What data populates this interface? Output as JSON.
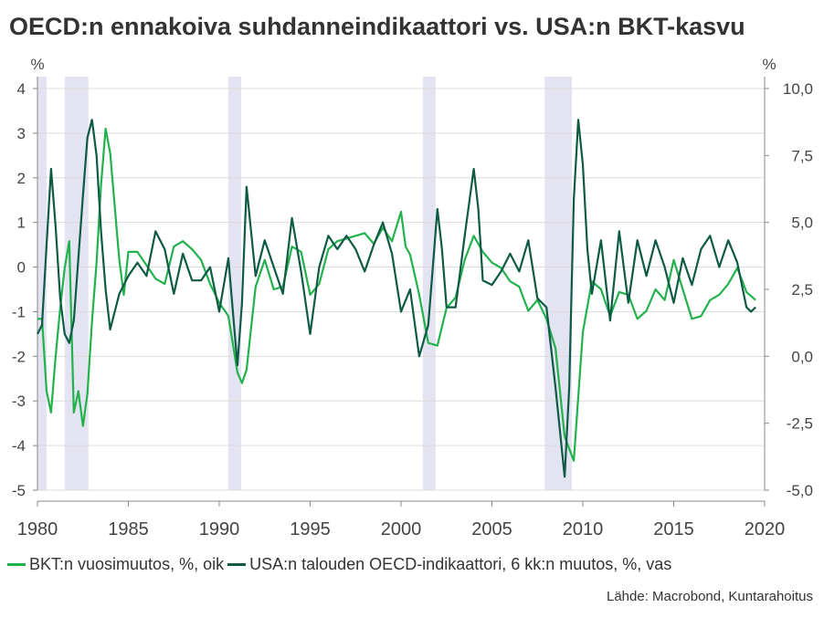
{
  "title": "OECD:n ennakoiva suhdanneindikaattori vs. USA:n BKT-kasvu",
  "source": "Lähde: Macrobond, Kuntarahoitus",
  "colors": {
    "gdp": "#22b24c",
    "oecd": "#0e5a45",
    "recession": "#e3e3f1",
    "grid": "#dcdcdc"
  },
  "chart_data": {
    "type": "line",
    "ylabel_left": "%",
    "ylabel_right": "%",
    "xlim": [
      1980,
      2020
    ],
    "x_ticks": [
      1980,
      1985,
      1990,
      1995,
      2000,
      2005,
      2010,
      2015,
      2020
    ],
    "ylim_left": [
      -5,
      4
    ],
    "y_ticks_left": [
      "4",
      "3",
      "2",
      "1",
      "0",
      "-1",
      "-2",
      "-3",
      "-4",
      "-5"
    ],
    "ylim_right": [
      -5,
      10
    ],
    "y_ticks_right": [
      "10,0",
      "7,5",
      "5,0",
      "2,5",
      "0,0",
      "-2,5",
      "-5,0"
    ],
    "grid": true,
    "legend_position": "bottom",
    "recessions": [
      [
        1980.0,
        1980.5
      ],
      [
        1981.5,
        1982.8
      ],
      [
        1990.5,
        1991.2
      ],
      [
        2001.2,
        2001.9
      ],
      [
        2007.9,
        2009.4
      ]
    ],
    "series": [
      {
        "name": "BKT:n vuosimuutos, %, oik",
        "axis": "right",
        "x": [
          1980.0,
          1980.25,
          1980.5,
          1980.75,
          1981.0,
          1981.25,
          1981.5,
          1981.75,
          1982.0,
          1982.25,
          1982.5,
          1982.75,
          1983.0,
          1983.25,
          1983.5,
          1983.75,
          1984.0,
          1984.25,
          1984.5,
          1984.75,
          1985.0,
          1985.5,
          1986.0,
          1986.5,
          1987.0,
          1987.5,
          1988.0,
          1988.5,
          1989.0,
          1989.5,
          1990.0,
          1990.5,
          1991.0,
          1991.25,
          1991.5,
          1992.0,
          1992.5,
          1993.0,
          1993.5,
          1994.0,
          1994.5,
          1995.0,
          1995.5,
          1996.0,
          1996.5,
          1997.0,
          1997.5,
          1998.0,
          1998.5,
          1999.0,
          1999.5,
          2000.0,
          2000.25,
          2000.5,
          2001.0,
          2001.5,
          2002.0,
          2002.5,
          2003.0,
          2003.5,
          2004.0,
          2004.5,
          2005.0,
          2005.5,
          2006.0,
          2006.5,
          2007.0,
          2007.5,
          2008.0,
          2008.5,
          2009.0,
          2009.5,
          2010.0,
          2010.5,
          2011.0,
          2011.5,
          2012.0,
          2012.5,
          2013.0,
          2013.5,
          2014.0,
          2014.5,
          2015.0,
          2015.5,
          2016.0,
          2016.5,
          2017.0,
          2017.5,
          2018.0,
          2018.5,
          2019.0,
          2019.5
        ],
        "y": [
          1.4,
          1.4,
          -1.3,
          -2.1,
          0.0,
          1.8,
          3.3,
          4.3,
          -2.1,
          -1.3,
          -2.6,
          -1.4,
          1.3,
          3.5,
          6.4,
          8.5,
          7.6,
          5.6,
          3.6,
          2.3,
          3.9,
          3.9,
          3.4,
          2.9,
          2.7,
          4.1,
          4.3,
          4.0,
          3.6,
          2.7,
          2.0,
          1.5,
          -0.6,
          -1.0,
          -0.5,
          2.6,
          3.6,
          2.5,
          2.6,
          4.1,
          3.9,
          2.3,
          2.7,
          4.0,
          4.3,
          4.4,
          4.5,
          4.6,
          4.2,
          4.8,
          4.3,
          5.4,
          4.1,
          3.8,
          2.3,
          0.5,
          0.4,
          1.8,
          2.2,
          3.6,
          4.5,
          3.9,
          3.5,
          3.3,
          2.8,
          2.6,
          1.7,
          2.1,
          1.4,
          0.3,
          -3.0,
          -3.9,
          0.9,
          2.8,
          2.5,
          1.5,
          2.4,
          2.3,
          1.4,
          1.7,
          2.5,
          2.1,
          3.6,
          2.5,
          1.4,
          1.5,
          2.1,
          2.3,
          2.7,
          3.3,
          2.4,
          2.1
        ]
      },
      {
        "name": "USA:n talouden OECD-indikaattori, 6 kk:n muutos, %, vas",
        "axis": "left",
        "x": [
          1980.0,
          1980.25,
          1980.5,
          1980.75,
          1981.0,
          1981.25,
          1981.5,
          1981.75,
          1982.0,
          1982.25,
          1982.5,
          1982.75,
          1983.0,
          1983.25,
          1983.5,
          1983.75,
          1984.0,
          1984.5,
          1985.0,
          1985.5,
          1986.0,
          1986.5,
          1987.0,
          1987.5,
          1988.0,
          1988.5,
          1989.0,
          1989.5,
          1990.0,
          1990.5,
          1991.0,
          1991.25,
          1991.5,
          1992.0,
          1992.5,
          1993.0,
          1993.5,
          1994.0,
          1994.5,
          1995.0,
          1995.5,
          1996.0,
          1996.5,
          1997.0,
          1997.5,
          1998.0,
          1998.5,
          1999.0,
          1999.5,
          2000.0,
          2000.5,
          2001.0,
          2001.5,
          2002.0,
          2002.25,
          2002.5,
          2003.0,
          2003.5,
          2004.0,
          2004.25,
          2004.5,
          2005.0,
          2005.5,
          2006.0,
          2006.5,
          2007.0,
          2007.5,
          2008.0,
          2008.5,
          2009.0,
          2009.25,
          2009.5,
          2009.75,
          2010.0,
          2010.25,
          2010.5,
          2011.0,
          2011.5,
          2012.0,
          2012.5,
          2013.0,
          2013.5,
          2014.0,
          2014.5,
          2015.0,
          2015.5,
          2016.0,
          2016.5,
          2017.0,
          2017.5,
          2018.0,
          2018.5,
          2019.0,
          2019.25,
          2019.5
        ],
        "y": [
          -1.5,
          -1.3,
          0.5,
          2.2,
          0.9,
          -0.7,
          -1.5,
          -1.7,
          -1.2,
          0.2,
          1.6,
          2.9,
          3.3,
          2.5,
          0.8,
          -0.5,
          -1.4,
          -0.6,
          -0.2,
          0.1,
          -0.2,
          0.8,
          0.4,
          -0.6,
          0.3,
          -0.3,
          -0.3,
          0.0,
          -1.0,
          0.2,
          -2.2,
          -0.8,
          1.8,
          -0.2,
          0.6,
          0.0,
          -0.6,
          1.1,
          -0.1,
          -1.5,
          0.0,
          0.7,
          0.4,
          0.7,
          0.4,
          -0.1,
          0.5,
          1.0,
          0.3,
          -1.0,
          -0.5,
          -2.0,
          -1.3,
          1.3,
          0.4,
          -0.9,
          -0.9,
          0.7,
          2.2,
          1.3,
          -0.3,
          -0.4,
          -0.1,
          0.3,
          -0.1,
          0.6,
          -0.7,
          -0.9,
          -2.7,
          -4.7,
          -2.7,
          1.5,
          3.3,
          2.3,
          0.4,
          -0.6,
          0.6,
          -1.2,
          0.8,
          -0.8,
          0.6,
          -0.2,
          0.6,
          0.0,
          -0.8,
          0.2,
          -0.4,
          0.4,
          0.7,
          0.0,
          0.6,
          0.1,
          -0.9,
          -1.0,
          -0.9
        ]
      }
    ]
  }
}
